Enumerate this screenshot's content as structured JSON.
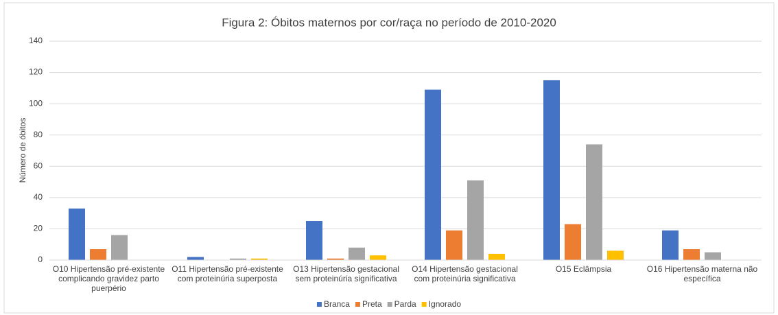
{
  "chart_data": {
    "type": "bar",
    "title": "Figura 2: Óbitos maternos por cor/raça no período de 2010-2020",
    "ylabel": "Número de óbitos",
    "categories": [
      "O10 Hipertensão pré-existente complicando gravidez parto puerpério",
      "O11 Hipertensão pré-existente com proteinúria superposta",
      "O13 Hipertensão gestacional sem proteinúria significativa",
      "O14 Hipertensão gestacional com proteinúria significativa",
      "O15 Eclâmpsia",
      "O16 Hipertensão materna não específica"
    ],
    "series": [
      {
        "name": "Branca",
        "color": "#4472c4",
        "values": [
          33,
          2,
          25,
          109,
          115,
          19
        ]
      },
      {
        "name": "Preta",
        "color": "#ed7d31",
        "values": [
          7,
          0,
          1,
          19,
          23,
          7
        ]
      },
      {
        "name": "Parda",
        "color": "#a5a5a5",
        "values": [
          16,
          1,
          8,
          51,
          74,
          5
        ]
      },
      {
        "name": "Ignorado",
        "color": "#ffc000",
        "values": [
          0,
          1,
          3,
          4,
          6,
          0
        ]
      }
    ],
    "ylim": [
      0,
      140
    ],
    "yticks": [
      0,
      20,
      40,
      60,
      80,
      100,
      120,
      140
    ],
    "grid": true,
    "legend": "bottom"
  }
}
